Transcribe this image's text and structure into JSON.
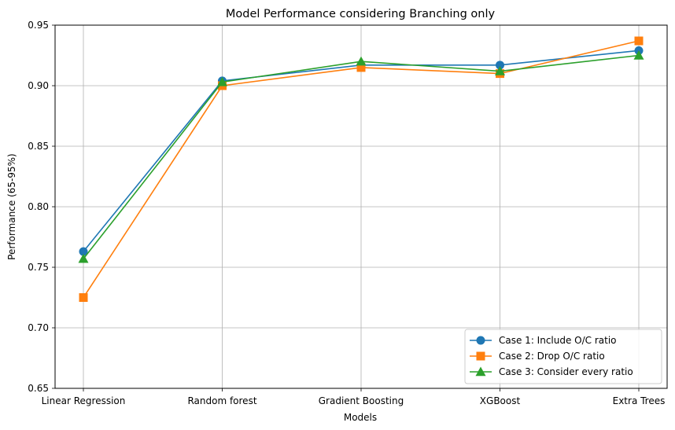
{
  "chart_data": {
    "type": "line",
    "title": "Model Performance considering Branching only",
    "xlabel": "Models",
    "ylabel": "Performance (65-95%)",
    "categories": [
      "Linear Regression",
      "Random forest",
      "Gradient Boosting",
      "XGBoost",
      "Extra Trees"
    ],
    "ylim": [
      0.65,
      0.95
    ],
    "yticks": [
      "0.65",
      "0.70",
      "0.75",
      "0.80",
      "0.85",
      "0.90",
      "0.95"
    ],
    "grid": true,
    "legend_position": "bottom-right",
    "series": [
      {
        "name": "Case 1: Include O/C ratio",
        "color": "#1f77b4",
        "marker": "circle",
        "values": [
          0.763,
          0.904,
          0.917,
          0.917,
          0.929
        ]
      },
      {
        "name": "Case 2: Drop O/C ratio",
        "color": "#ff7f0e",
        "marker": "square",
        "values": [
          0.725,
          0.9,
          0.915,
          0.91,
          0.937
        ]
      },
      {
        "name": "Case 3: Consider every ratio",
        "color": "#2ca02c",
        "marker": "triangle",
        "values": [
          0.757,
          0.903,
          0.92,
          0.912,
          0.925
        ]
      }
    ]
  }
}
